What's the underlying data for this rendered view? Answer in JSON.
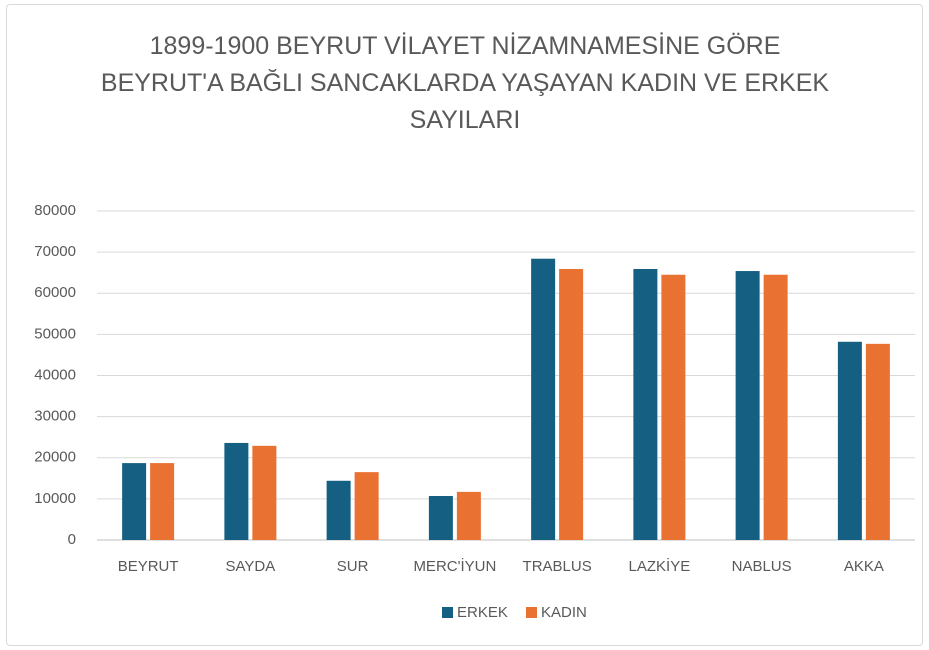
{
  "chart_data": {
    "type": "bar",
    "title": "1899-1900 BEYRUT VİLAYET NİZAMNAMESİNE GÖRE BEYRUT'A BAĞLI SANCAKLARDA YAŞAYAN KADIN VE ERKEK SAYILARI",
    "categories": [
      "BEYRUT",
      "SAYDA",
      "SUR",
      "MERC'İYUN",
      "TRABLUS",
      "LAZKİYE",
      "NABLUS",
      "AKKA"
    ],
    "series": [
      {
        "name": "ERKEK",
        "color": "#156082",
        "values": [
          18700,
          23600,
          14400,
          10700,
          68400,
          65900,
          65400,
          48200
        ]
      },
      {
        "name": "KADIN",
        "color": "#e97132",
        "values": [
          18700,
          22900,
          16500,
          11700,
          65900,
          64500,
          64500,
          47700
        ]
      }
    ],
    "ylim": [
      0,
      80000
    ],
    "yticks": [
      0,
      10000,
      20000,
      30000,
      40000,
      50000,
      60000,
      70000,
      80000
    ],
    "grid": true,
    "legend": "bottom"
  }
}
